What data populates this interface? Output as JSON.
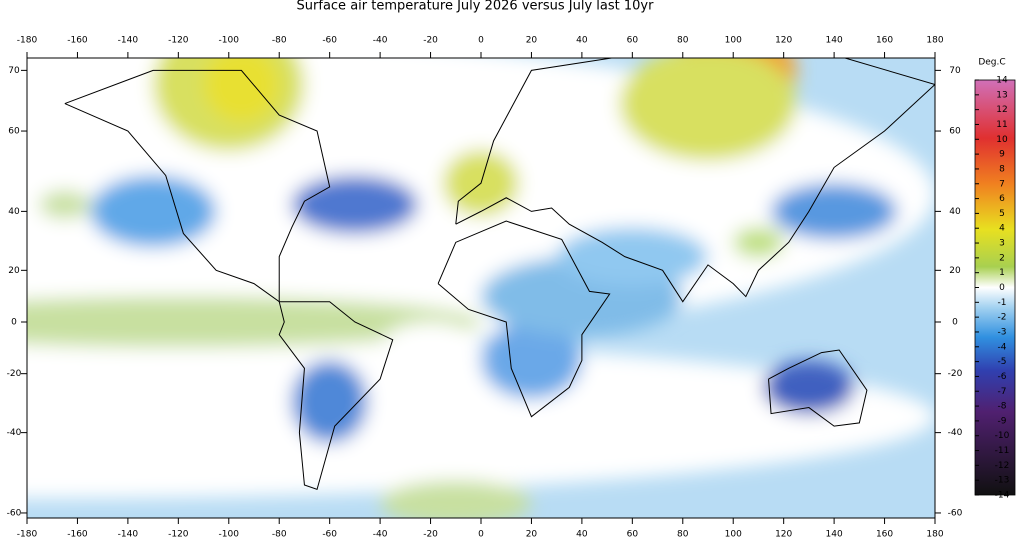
{
  "title": "Surface air temperature July 2026 versus July last 10yr",
  "lon_ticks": [
    -180,
    -160,
    -140,
    -120,
    -100,
    -80,
    -60,
    -40,
    -20,
    0,
    20,
    40,
    60,
    80,
    100,
    120,
    140,
    160,
    180
  ],
  "lat_ticks": [
    70,
    60,
    40,
    20,
    0,
    -20,
    -40,
    -60
  ],
  "colorbar": {
    "label": "Deg.C",
    "ticks": [
      14,
      13,
      12,
      11,
      10,
      9,
      8,
      7,
      6,
      5,
      4,
      3,
      2,
      1,
      0,
      -1,
      -2,
      -3,
      -4,
      -5,
      -6,
      -7,
      -8,
      -9,
      -10,
      -11,
      -12,
      -13,
      -14
    ]
  }
}
